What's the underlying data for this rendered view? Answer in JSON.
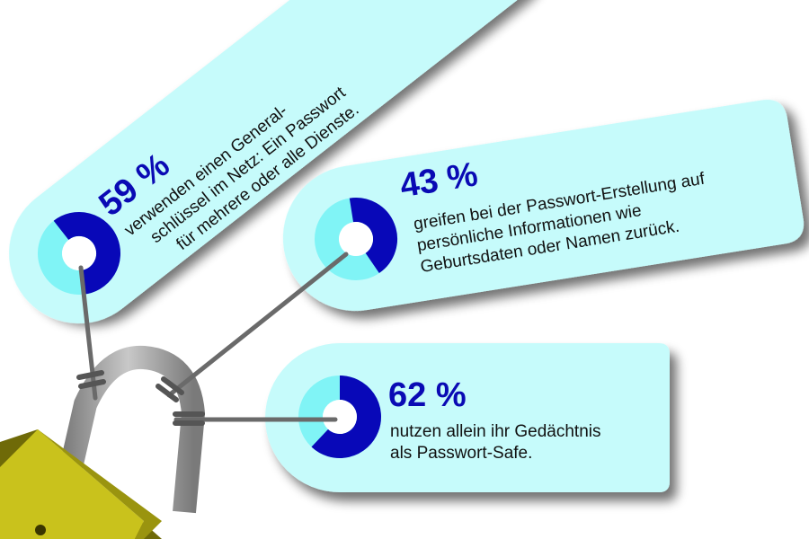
{
  "colors": {
    "tag_fill": "#c6fbfb",
    "donut_dark": "#0808b8",
    "donut_light": "#80f4f6",
    "string": "#6a6a6a",
    "shackle": "#9a9a9a",
    "lock_body": "#c8c21a"
  },
  "tags": [
    {
      "percent_label": "59 %",
      "value": 59,
      "lines": [
        "verwenden einen General-",
        "schlüssel im Netz: Ein Passwort",
        "für mehrere oder alle Dienste."
      ]
    },
    {
      "percent_label": "43 %",
      "value": 43,
      "lines": [
        "greifen bei der Passwort-Erstellung auf",
        "persönliche Informationen wie",
        "Geburtsdaten oder Namen zurück."
      ]
    },
    {
      "percent_label": "62 %",
      "value": 62,
      "lines": [
        "nutzen allein ihr Gedächtnis",
        "als Passwort-Safe."
      ]
    }
  ],
  "icons": {
    "padlock": "padlock-icon"
  }
}
